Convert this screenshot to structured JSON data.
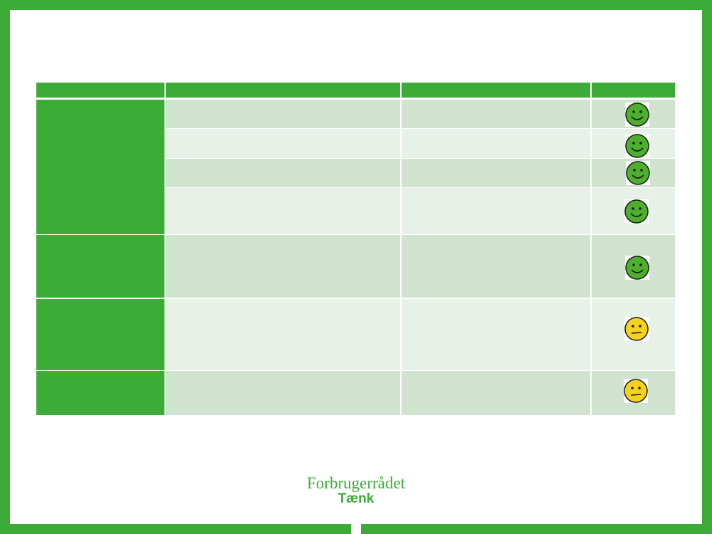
{
  "logo": {
    "name": "Forbrugerrådet",
    "product": "Tænk"
  }
}
